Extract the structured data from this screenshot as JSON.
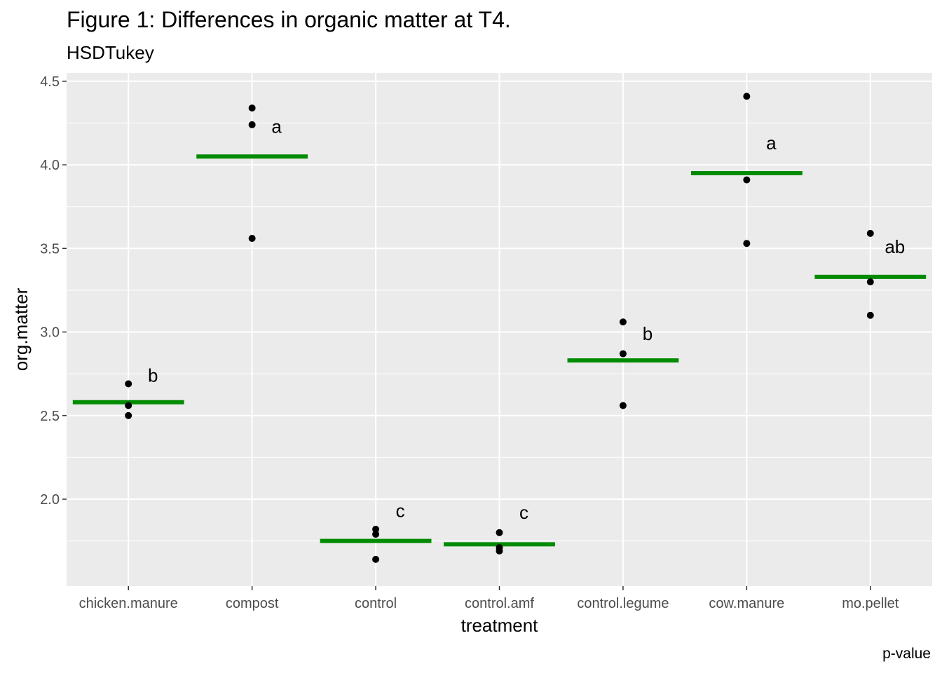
{
  "chart_data": {
    "type": "scatter",
    "title": "Figure 1: Differences in organic matter at T4.",
    "subtitle": "HSDTukey",
    "caption": "p-value",
    "xlabel": "treatment",
    "ylabel": "org.matter",
    "categories": [
      "chicken.manure",
      "compost",
      "control",
      "control.amf",
      "control.legume",
      "cow.manure",
      "mo.pellet"
    ],
    "ylim": [
      1.48,
      4.55
    ],
    "yticks": [
      2.0,
      2.5,
      3.0,
      3.5,
      4.0,
      4.5
    ],
    "ytick_labels": [
      "2.0",
      "2.5",
      "3.0",
      "3.5",
      "4.0",
      "4.5"
    ],
    "points": [
      [
        2.69,
        2.56,
        2.5
      ],
      [
        4.34,
        4.24,
        3.56
      ],
      [
        1.82,
        1.79,
        1.64
      ],
      [
        1.8,
        1.71,
        1.69
      ],
      [
        3.06,
        2.87,
        2.56
      ],
      [
        4.41,
        3.91,
        3.53
      ],
      [
        3.59,
        3.3,
        3.1
      ]
    ],
    "means": [
      2.58,
      4.05,
      1.75,
      1.73,
      2.83,
      3.95,
      3.33
    ],
    "groups": [
      "b",
      "a",
      "c",
      "c",
      "b",
      "a",
      "ab"
    ],
    "group_label_y": [
      2.74,
      4.23,
      1.93,
      1.92,
      2.99,
      4.13,
      3.51
    ],
    "colors": {
      "panel_background": "#ebebeb",
      "grid": "#ffffff",
      "points": "#000000",
      "mean_bar": "#008b00"
    },
    "grid": true,
    "legend": "none"
  }
}
